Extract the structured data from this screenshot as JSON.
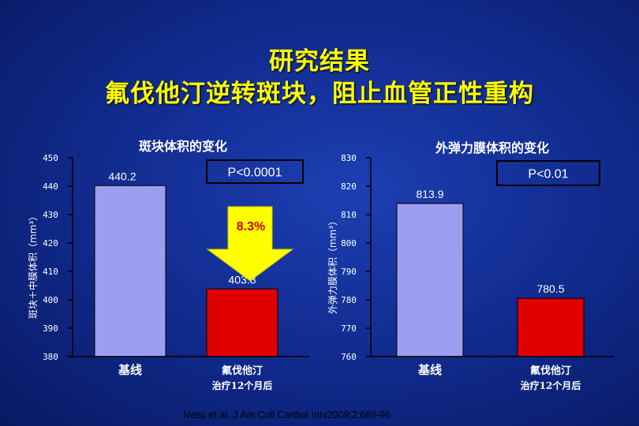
{
  "slide": {
    "title_line1": "研究结果",
    "title_line2": "氟伐他汀逆转斑块，阻止血管正性重构",
    "citation": "Nasu et al. J Am Coll Cardiol Intv2009;2:689-96"
  },
  "colors": {
    "background": "#122b8f",
    "title": "#ffff00",
    "baseline_bar": "#9d9df0",
    "treated_bar": "#e00000",
    "arrow": "#ffff00",
    "pct_text": "#cc0000"
  },
  "chart_data": [
    {
      "type": "bar",
      "title": "斑块体积的变化",
      "ylabel": "斑块＋中膜体积（mm³）",
      "ylim": [
        380,
        450
      ],
      "yticks": [
        380,
        390,
        400,
        410,
        420,
        430,
        440,
        450
      ],
      "categories": [
        "基线",
        "氟伐他汀"
      ],
      "category_sublabels": [
        "",
        "治疗12个月后"
      ],
      "values": [
        440.2,
        403.8
      ],
      "value_labels": [
        "440.2",
        "403.8"
      ],
      "annotation": "P<0.0001",
      "change_label": "8.3%",
      "grid": false
    },
    {
      "type": "bar",
      "title": "外弹力膜体积的变化",
      "ylabel": "外弹力膜体积（mm³）",
      "ylim": [
        760,
        830
      ],
      "yticks": [
        760,
        770,
        780,
        790,
        800,
        810,
        820,
        830
      ],
      "categories": [
        "基线",
        "氟伐他汀"
      ],
      "category_sublabels": [
        "",
        "治疗12个月后"
      ],
      "values": [
        813.9,
        780.5
      ],
      "value_labels": [
        "813.9",
        "780.5"
      ],
      "annotation": "P<0.01",
      "grid": false
    }
  ]
}
